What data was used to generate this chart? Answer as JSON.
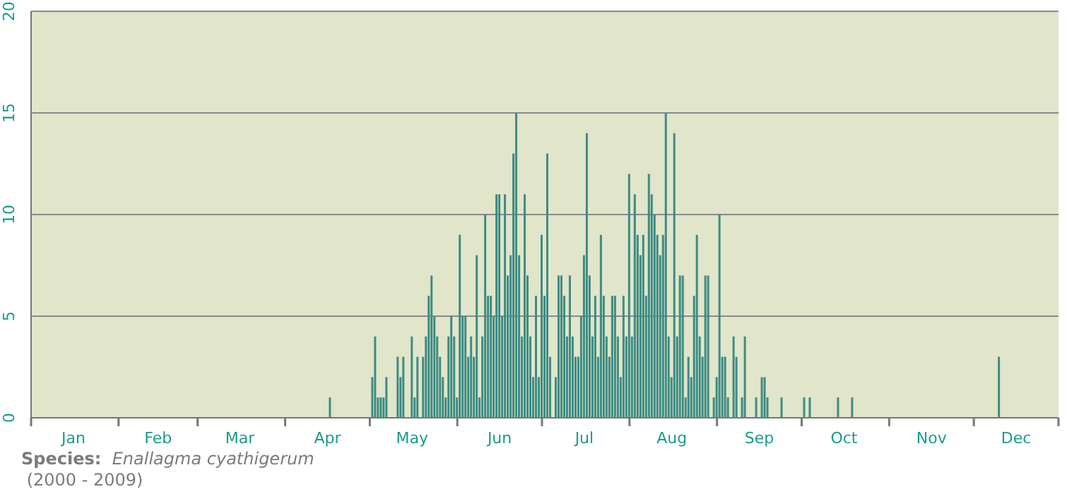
{
  "chart_data": {
    "type": "bar",
    "annotations": [
      "Species: Enallagma cyathigerum",
      "(2000 - 2009)"
    ],
    "x": [
      "--04-17",
      "--05-02",
      "--05-03",
      "--05-04",
      "--05-05",
      "--05-06",
      "--05-07",
      "--05-11",
      "--05-12",
      "--05-13",
      "--05-16",
      "--05-17",
      "--05-18",
      "--05-20",
      "--05-21",
      "--05-22",
      "--05-23",
      "--05-24",
      "--05-25",
      "--05-26",
      "--05-27",
      "--05-28",
      "--05-29",
      "--05-30",
      "--05-31",
      "--06-01",
      "--06-02",
      "--06-03",
      "--06-04",
      "--06-05",
      "--06-06",
      "--06-07",
      "--06-08",
      "--06-09",
      "--06-10",
      "--06-11",
      "--06-12",
      "--06-13",
      "--06-14",
      "--06-15",
      "--06-16",
      "--06-17",
      "--06-18",
      "--06-19",
      "--06-20",
      "--06-21",
      "--06-22",
      "--06-23",
      "--06-24",
      "--06-25",
      "--06-26",
      "--06-27",
      "--06-28",
      "--06-29",
      "--06-30",
      "--07-01",
      "--07-02",
      "--07-03",
      "--07-04",
      "--07-06",
      "--07-07",
      "--07-08",
      "--07-09",
      "--07-10",
      "--07-11",
      "--07-12",
      "--07-13",
      "--07-14",
      "--07-15",
      "--07-16",
      "--07-17",
      "--07-18",
      "--07-19",
      "--07-20",
      "--07-21",
      "--07-22",
      "--07-23",
      "--07-24",
      "--07-25",
      "--07-26",
      "--07-27",
      "--07-28",
      "--07-29",
      "--07-30",
      "--07-31",
      "--08-01",
      "--08-02",
      "--08-03",
      "--08-04",
      "--08-05",
      "--08-06",
      "--08-07",
      "--08-08",
      "--08-09",
      "--08-10",
      "--08-11",
      "--08-12",
      "--08-13",
      "--08-14",
      "--08-15",
      "--08-16",
      "--08-17",
      "--08-18",
      "--08-19",
      "--08-20",
      "--08-21",
      "--08-22",
      "--08-23",
      "--08-24",
      "--08-25",
      "--08-26",
      "--08-27",
      "--08-28",
      "--08-29",
      "--08-31",
      "--09-01",
      "--09-02",
      "--09-03",
      "--09-04",
      "--09-05",
      "--09-07",
      "--09-08",
      "--09-10",
      "--09-11",
      "--09-15",
      "--09-17",
      "--09-18",
      "--09-19",
      "--09-24",
      "--10-02",
      "--10-04",
      "--10-14",
      "--10-19",
      "--12-10"
    ],
    "series": [
      {
        "color": "#3d8c84",
        "values": [
          1,
          2,
          4,
          1,
          1,
          1,
          2,
          3,
          2,
          3,
          4,
          1,
          3,
          3,
          4,
          6,
          7,
          5,
          4,
          3,
          2,
          1,
          4,
          5,
          4,
          1,
          9,
          5,
          5,
          3,
          4,
          3,
          8,
          1,
          4,
          10,
          6,
          6,
          5,
          11,
          11,
          5,
          11,
          7,
          8,
          13,
          15,
          8,
          4,
          11,
          7,
          4,
          2,
          6,
          2,
          9,
          6,
          13,
          3,
          2,
          7,
          7,
          6,
          4,
          7,
          4,
          3,
          3,
          5,
          8,
          14,
          7,
          4,
          6,
          3,
          9,
          6,
          4,
          3,
          6,
          6,
          4,
          2,
          6,
          4,
          12,
          4,
          11,
          9,
          8,
          9,
          6,
          12,
          11,
          10,
          9,
          8,
          9,
          15,
          4,
          2,
          14,
          4,
          7,
          7,
          1,
          3,
          2,
          6,
          9,
          4,
          3,
          7,
          7,
          1,
          2,
          10,
          3,
          3,
          1,
          4,
          3,
          1,
          4,
          1,
          2,
          2,
          1,
          1,
          1,
          1,
          1,
          1,
          3
        ]
      }
    ],
    "xlim": [
      "--01-01",
      "--12-31"
    ],
    "xticks": [
      {
        "value": "--01-01",
        "label": null
      },
      {
        "value": "--01-16",
        "label": "Jan"
      },
      {
        "value": "--02-01",
        "label": null
      },
      {
        "value": "--02-15",
        "label": "Feb"
      },
      {
        "value": "--03-01",
        "label": null
      },
      {
        "value": "--03-16",
        "label": "Mar"
      },
      {
        "value": "--04-01",
        "label": null
      },
      {
        "value": "--04-16",
        "label": "Apr"
      },
      {
        "value": "--05-01",
        "label": null
      },
      {
        "value": "--05-16",
        "label": "May"
      },
      {
        "value": "--06-01",
        "label": null
      },
      {
        "value": "--06-16",
        "label": "Jun"
      },
      {
        "value": "--07-01",
        "label": null
      },
      {
        "value": "--07-16",
        "label": "Jul"
      },
      {
        "value": "--08-01",
        "label": null
      },
      {
        "value": "--08-16",
        "label": "Aug"
      },
      {
        "value": "--09-01",
        "label": null
      },
      {
        "value": "--09-16",
        "label": "Sep"
      },
      {
        "value": "--10-01",
        "label": null
      },
      {
        "value": "--10-16",
        "label": "Oct"
      },
      {
        "value": "--11-01",
        "label": null
      },
      {
        "value": "--11-16",
        "label": "Nov"
      },
      {
        "value": "--12-01",
        "label": null
      },
      {
        "value": "--12-16",
        "label": "Dec"
      },
      {
        "value": "--12-31",
        "label": null
      }
    ],
    "ylim": [
      0,
      20
    ],
    "yticks": [
      0,
      5,
      10,
      15,
      20
    ],
    "grid": "y"
  }
}
